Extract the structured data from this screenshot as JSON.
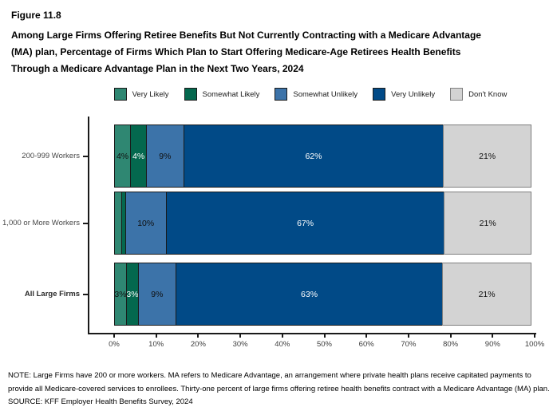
{
  "figure": {
    "label": "Figure 11.8",
    "title": "Among Large Firms Offering Retiree Benefits But Not Currently Contracting with a Medicare Advantage (MA) plan, Percentage of Firms Which Plan to Start Offering Medicare-Age Retirees Health Benefits Through a Medicare Advantage Plan in the Next Two Years, 2024"
  },
  "chart_data": {
    "type": "bar",
    "orientation": "horizontal",
    "stacked": true,
    "xlim": [
      0,
      100
    ],
    "legend_position": "top",
    "categories": [
      "200-999 Workers",
      "1,000 or More Workers",
      "All Large Firms"
    ],
    "category_styles": [
      "normal",
      "normal",
      "bold"
    ],
    "series": [
      {
        "name": "Very Likely",
        "color": "#2F8772",
        "border": "#1a1a1a",
        "text_color": "#101010",
        "values": [
          4,
          2,
          3
        ],
        "labels": [
          "4%",
          "",
          "3%"
        ]
      },
      {
        "name": "Somewhat Likely",
        "color": "#04684E",
        "border": "#1a1a1a",
        "text_color": "#ffffff",
        "values": [
          4,
          1,
          3
        ],
        "labels": [
          "4%",
          "",
          "3%"
        ]
      },
      {
        "name": "Somewhat Unlikely",
        "color": "#3C73A9",
        "border": "#1a1a1a",
        "text_color": "#101010",
        "values": [
          9,
          10,
          9
        ],
        "labels": [
          "9%",
          "10%",
          "9%"
        ]
      },
      {
        "name": "Very Unlikely",
        "color": "#014A87",
        "border": "#1a1a1a",
        "text_color": "#ffffff",
        "values": [
          62,
          67,
          63
        ],
        "labels": [
          "62%",
          "67%",
          "63%"
        ]
      },
      {
        "name": "Don't Know",
        "color": "#D3D3D3",
        "border": "#7f7f7f",
        "text_color": "#101010",
        "values": [
          21,
          21,
          21
        ],
        "labels": [
          "21%",
          "21%",
          "21%"
        ]
      }
    ],
    "x_ticks": [
      "0%",
      "10%",
      "20%",
      "30%",
      "40%",
      "50%",
      "60%",
      "70%",
      "80%",
      "90%",
      "100%"
    ]
  },
  "notes": {
    "note": "NOTE: Large Firms have 200 or more workers.  MA refers to Medicare Advantage, an arrangement where private health plans receive capitated payments to provide all Medicare-covered services to enrollees.  Thirty-one percent of large firms offering retiree health benefits contract with a Medicare Advantage (MA) plan.",
    "source": "SOURCE: KFF Employer Health Benefits Survey, 2024"
  }
}
